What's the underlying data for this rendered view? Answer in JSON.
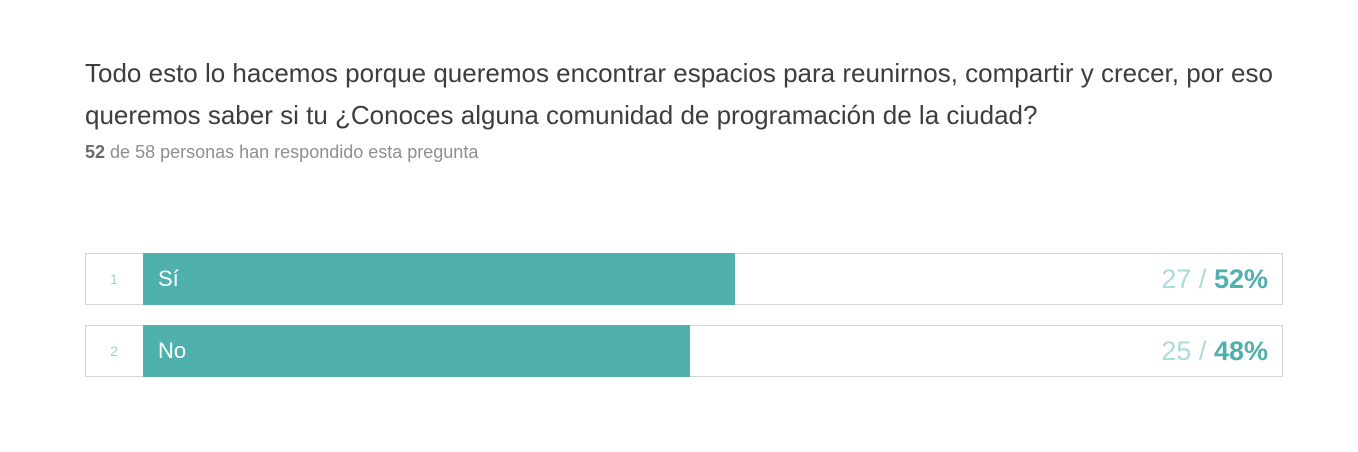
{
  "question": "Todo esto lo hacemos porque queremos encontrar espacios para reunirnos, compartir y crecer, por eso queremos saber si tu ¿Conoces alguna comunidad de programación de la ciudad?",
  "answered": "52",
  "summary": "de 58 personas han respondido esta pregunta",
  "separator": "/",
  "color": "#50b0ae",
  "rows": [
    {
      "index": "1",
      "label": "Sí",
      "count": 27,
      "percent": 52,
      "percent_label": "52%"
    },
    {
      "index": "2",
      "label": "No",
      "count": 25,
      "percent": 48,
      "percent_label": "48%"
    }
  ]
}
